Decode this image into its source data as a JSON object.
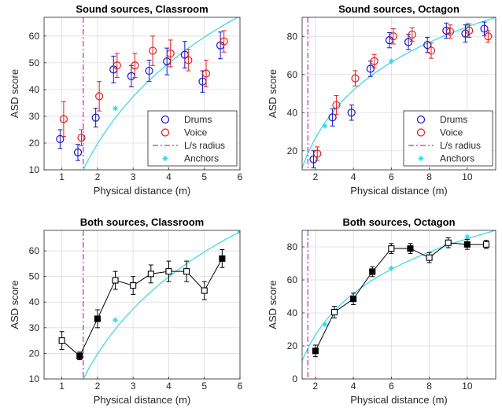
{
  "colors": {
    "drums": "#1414c8",
    "voice": "#e01e1e",
    "radius": "#d21ed2",
    "anchors": "#33d6e8",
    "both": "#000000",
    "grid": "#dcdcdc",
    "axis": "#262626"
  },
  "chart_data": [
    {
      "type": "scatter",
      "title": "Sound sources, Classroom",
      "xlabel": "Physical distance (m)",
      "ylabel": "ASD score",
      "xlim": [
        0.5,
        6
      ],
      "ylim": [
        10,
        67
      ],
      "xticks": [
        1,
        2,
        3,
        4,
        5,
        6
      ],
      "yticks": [
        10,
        20,
        30,
        40,
        50,
        60
      ],
      "grid": true,
      "legend_position": "bottom-right",
      "legend": [
        "Drums",
        "Voice",
        "L/s radius",
        "Anchors"
      ],
      "radius": 1.6,
      "anchor_curve": {
        "x_start": 1.6,
        "y_start": 10,
        "x_end": 6.0,
        "y_end": 67.5
      },
      "anchor_points": [
        {
          "x": 2.5,
          "y": 33
        },
        {
          "x": 6.0,
          "y": 67.5
        }
      ],
      "series": [
        {
          "name": "Drums",
          "points": [
            {
              "x": 0.95,
              "y": 21.5,
              "err": 3.5
            },
            {
              "x": 1.45,
              "y": 16.5,
              "err": 3
            },
            {
              "x": 1.95,
              "y": 29.5,
              "err": 3.5
            },
            {
              "x": 2.45,
              "y": 47.5,
              "err": 5
            },
            {
              "x": 2.95,
              "y": 45,
              "err": 4
            },
            {
              "x": 3.45,
              "y": 47,
              "err": 4
            },
            {
              "x": 3.95,
              "y": 50.5,
              "err": 5
            },
            {
              "x": 4.45,
              "y": 53,
              "err": 5
            },
            {
              "x": 4.95,
              "y": 43,
              "err": 4
            },
            {
              "x": 5.45,
              "y": 56.5,
              "err": 5
            }
          ]
        },
        {
          "name": "Voice",
          "points": [
            {
              "x": 1.05,
              "y": 29,
              "err": 6.5
            },
            {
              "x": 1.55,
              "y": 22,
              "err": 3
            },
            {
              "x": 2.05,
              "y": 37.5,
              "err": 5.5
            },
            {
              "x": 2.55,
              "y": 49,
              "err": 4.5
            },
            {
              "x": 3.05,
              "y": 49,
              "err": 4.5
            },
            {
              "x": 3.55,
              "y": 54.5,
              "err": 5.5
            },
            {
              "x": 4.05,
              "y": 53.5,
              "err": 5
            },
            {
              "x": 4.55,
              "y": 51,
              "err": 4
            },
            {
              "x": 5.05,
              "y": 46,
              "err": 5
            },
            {
              "x": 5.55,
              "y": 58,
              "err": 4
            }
          ]
        }
      ]
    },
    {
      "type": "scatter",
      "title": "Sound sources, Octagon",
      "xlabel": "Physical distance (m)",
      "ylabel": "ASD score",
      "xlim": [
        1.3,
        11.5
      ],
      "ylim": [
        10,
        90
      ],
      "xticks": [
        2,
        4,
        6,
        8,
        10
      ],
      "yticks": [
        20,
        40,
        60,
        80
      ],
      "grid": true,
      "legend_position": "bottom-right",
      "legend": [
        "Drums",
        "Voice",
        "L/s radius",
        "Anchors"
      ],
      "radius": 1.6,
      "anchor_curve": {
        "x_start": 1.3,
        "y_start": 11,
        "x_end": 11.5,
        "y_end": 90
      },
      "anchor_points": [
        {
          "x": 2.5,
          "y": 33
        },
        {
          "x": 6.0,
          "y": 67
        },
        {
          "x": 10.0,
          "y": 86
        }
      ],
      "series": [
        {
          "name": "Drums",
          "points": [
            {
              "x": 1.9,
              "y": 15.5,
              "err": 4.5
            },
            {
              "x": 2.9,
              "y": 37.5,
              "err": 4.5
            },
            {
              "x": 3.9,
              "y": 40,
              "err": 4
            },
            {
              "x": 4.9,
              "y": 63,
              "err": 4
            },
            {
              "x": 5.9,
              "y": 78,
              "err": 4
            },
            {
              "x": 6.9,
              "y": 77,
              "err": 4
            },
            {
              "x": 7.9,
              "y": 75.5,
              "err": 4
            },
            {
              "x": 8.9,
              "y": 83,
              "err": 4
            },
            {
              "x": 9.9,
              "y": 81.5,
              "err": 4.5
            },
            {
              "x": 10.9,
              "y": 84,
              "err": 3.5
            }
          ]
        },
        {
          "name": "Voice",
          "points": [
            {
              "x": 2.1,
              "y": 18.5,
              "err": 3.5
            },
            {
              "x": 3.1,
              "y": 44,
              "err": 5
            },
            {
              "x": 4.1,
              "y": 58,
              "err": 4
            },
            {
              "x": 5.1,
              "y": 67,
              "err": 3.5
            },
            {
              "x": 6.1,
              "y": 80,
              "err": 4
            },
            {
              "x": 7.1,
              "y": 81,
              "err": 3.5
            },
            {
              "x": 8.1,
              "y": 72.5,
              "err": 4
            },
            {
              "x": 9.1,
              "y": 82.5,
              "err": 3.5
            },
            {
              "x": 10.1,
              "y": 83,
              "err": 3.5
            },
            {
              "x": 11.1,
              "y": 80,
              "err": 3
            }
          ]
        }
      ]
    },
    {
      "type": "line",
      "title": "Both sources, Classroom",
      "xlabel": "Physical distance (m)",
      "ylabel": "ASD score",
      "xlim": [
        0.5,
        6
      ],
      "ylim": [
        10,
        68
      ],
      "xticks": [
        1,
        2,
        3,
        4,
        5,
        6
      ],
      "yticks": [
        10,
        20,
        30,
        40,
        50,
        60
      ],
      "grid": true,
      "radius": 1.6,
      "anchor_curve": {
        "x_start": 1.6,
        "y_start": 10,
        "x_end": 6.0,
        "y_end": 67.5
      },
      "anchor_points": [
        {
          "x": 2.5,
          "y": 33
        },
        {
          "x": 6.0,
          "y": 67.5
        }
      ],
      "series": [
        {
          "points": [
            {
              "x": 1,
              "y": 25,
              "err": 3.5,
              "filled": false
            },
            {
              "x": 1.5,
              "y": 19,
              "err": 1.5,
              "filled": true
            },
            {
              "x": 2,
              "y": 33.5,
              "err": 3.5,
              "filled": true
            },
            {
              "x": 2.5,
              "y": 48.5,
              "err": 3.5,
              "filled": false
            },
            {
              "x": 3,
              "y": 46.5,
              "err": 3.5,
              "filled": false
            },
            {
              "x": 3.5,
              "y": 51,
              "err": 3.5,
              "filled": false
            },
            {
              "x": 4,
              "y": 52,
              "err": 4,
              "filled": false
            },
            {
              "x": 4.5,
              "y": 52,
              "err": 4,
              "filled": false
            },
            {
              "x": 5,
              "y": 44.5,
              "err": 3.5,
              "filled": false
            },
            {
              "x": 5.5,
              "y": 57,
              "err": 3.5,
              "filled": true
            }
          ]
        }
      ]
    },
    {
      "type": "line",
      "title": "Both sources, Octagon",
      "xlabel": "Physical distance (m)",
      "ylabel": "ASD score",
      "xlim": [
        1.3,
        11.5
      ],
      "ylim": [
        0,
        90
      ],
      "xticks": [
        2,
        4,
        6,
        8,
        10
      ],
      "yticks": [
        0,
        20,
        40,
        60,
        80
      ],
      "grid": true,
      "radius": 1.6,
      "anchor_curve": {
        "x_start": 1.3,
        "y_start": 11,
        "x_end": 11.5,
        "y_end": 90
      },
      "anchor_points": [
        {
          "x": 2.5,
          "y": 33
        },
        {
          "x": 6.0,
          "y": 67
        },
        {
          "x": 10.0,
          "y": 86
        }
      ],
      "series": [
        {
          "points": [
            {
              "x": 2,
              "y": 17,
              "err": 3.5,
              "filled": true
            },
            {
              "x": 3,
              "y": 40.5,
              "err": 3.5,
              "filled": false
            },
            {
              "x": 4,
              "y": 48.5,
              "err": 3.5,
              "filled": true
            },
            {
              "x": 5,
              "y": 65,
              "err": 3,
              "filled": true
            },
            {
              "x": 6,
              "y": 79,
              "err": 3,
              "filled": false
            },
            {
              "x": 7,
              "y": 79,
              "err": 3,
              "filled": true
            },
            {
              "x": 8,
              "y": 73.5,
              "err": 3,
              "filled": false
            },
            {
              "x": 9,
              "y": 82.5,
              "err": 3,
              "filled": false
            },
            {
              "x": 10,
              "y": 81.5,
              "err": 3,
              "filled": true
            },
            {
              "x": 11,
              "y": 81.5,
              "err": 2.5,
              "filled": false
            }
          ]
        }
      ]
    }
  ]
}
